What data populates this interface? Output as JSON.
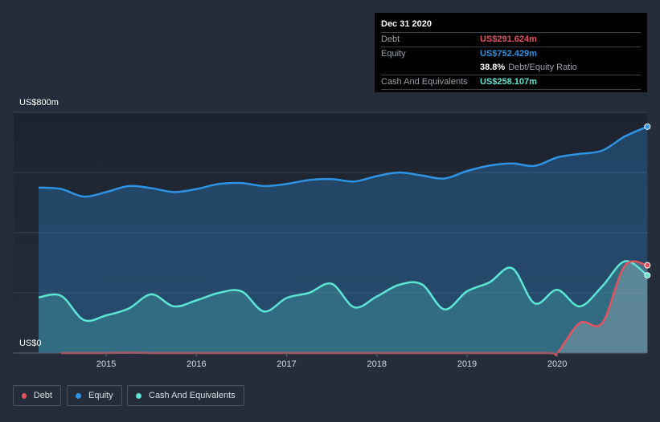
{
  "chart_data": {
    "type": "area",
    "y_axis": {
      "top_label": "US$800m",
      "bottom_label": "US$0",
      "ylim": [
        0,
        800
      ]
    },
    "x_axis": {
      "ticks": [
        "2015",
        "2016",
        "2017",
        "2018",
        "2019",
        "2020"
      ],
      "xlim": [
        2014.25,
        2021.0
      ]
    },
    "grid": true,
    "legend_position": "bottom-left",
    "series": [
      {
        "name": "Debt",
        "color": "#e4525e",
        "x": [
          2014.5,
          2015.0,
          2015.25,
          2015.5,
          2016.0,
          2017.0,
          2018.0,
          2019.0,
          2019.9,
          2020.0,
          2020.25,
          2020.5,
          2020.75,
          2021.0
        ],
        "values": [
          0,
          0,
          1,
          0,
          0,
          0,
          0,
          0,
          0,
          0,
          100,
          100,
          290,
          291.624
        ]
      },
      {
        "name": "Equity",
        "color": "#2d93e5",
        "x": [
          2014.25,
          2014.5,
          2014.75,
          2015.0,
          2015.25,
          2015.5,
          2015.75,
          2016.0,
          2016.25,
          2016.5,
          2016.75,
          2017.0,
          2017.25,
          2017.5,
          2017.75,
          2018.0,
          2018.25,
          2018.5,
          2018.75,
          2019.0,
          2019.25,
          2019.5,
          2019.75,
          2020.0,
          2020.25,
          2020.5,
          2020.75,
          2021.0
        ],
        "values": [
          550,
          545,
          520,
          535,
          555,
          548,
          535,
          545,
          562,
          565,
          555,
          562,
          575,
          578,
          570,
          588,
          600,
          590,
          580,
          605,
          623,
          630,
          622,
          650,
          662,
          673,
          720,
          752.429
        ]
      },
      {
        "name": "Cash And Equivalents",
        "color": "#5ce6d4",
        "x": [
          2014.25,
          2014.5,
          2014.75,
          2015.0,
          2015.25,
          2015.5,
          2015.75,
          2016.0,
          2016.25,
          2016.5,
          2016.75,
          2017.0,
          2017.25,
          2017.5,
          2017.75,
          2018.0,
          2018.25,
          2018.5,
          2018.75,
          2019.0,
          2019.25,
          2019.5,
          2019.75,
          2020.0,
          2020.25,
          2020.5,
          2020.75,
          2021.0
        ],
        "values": [
          185,
          190,
          110,
          125,
          148,
          195,
          155,
          175,
          200,
          205,
          138,
          183,
          200,
          230,
          152,
          188,
          227,
          228,
          145,
          205,
          235,
          282,
          165,
          210,
          155,
          222,
          305,
          258.107
        ]
      }
    ]
  },
  "tooltip": {
    "date": "Dec 31 2020",
    "rows": [
      {
        "label": "Debt",
        "value": "US$291.624m",
        "color": "#e4525e"
      },
      {
        "label": "Equity",
        "value": "US$752.429m",
        "color": "#2d93e5"
      },
      {
        "ratio_value": "38.8%",
        "ratio_label": "Debt/Equity Ratio"
      },
      {
        "label": "Cash And Equivalents",
        "value": "US$258.107m",
        "color": "#5ce6d4"
      }
    ]
  },
  "legend": [
    {
      "label": "Debt",
      "color": "#e4525e"
    },
    {
      "label": "Equity",
      "color": "#2d93e5"
    },
    {
      "label": "Cash And Equivalents",
      "color": "#5ce6d4"
    }
  ]
}
